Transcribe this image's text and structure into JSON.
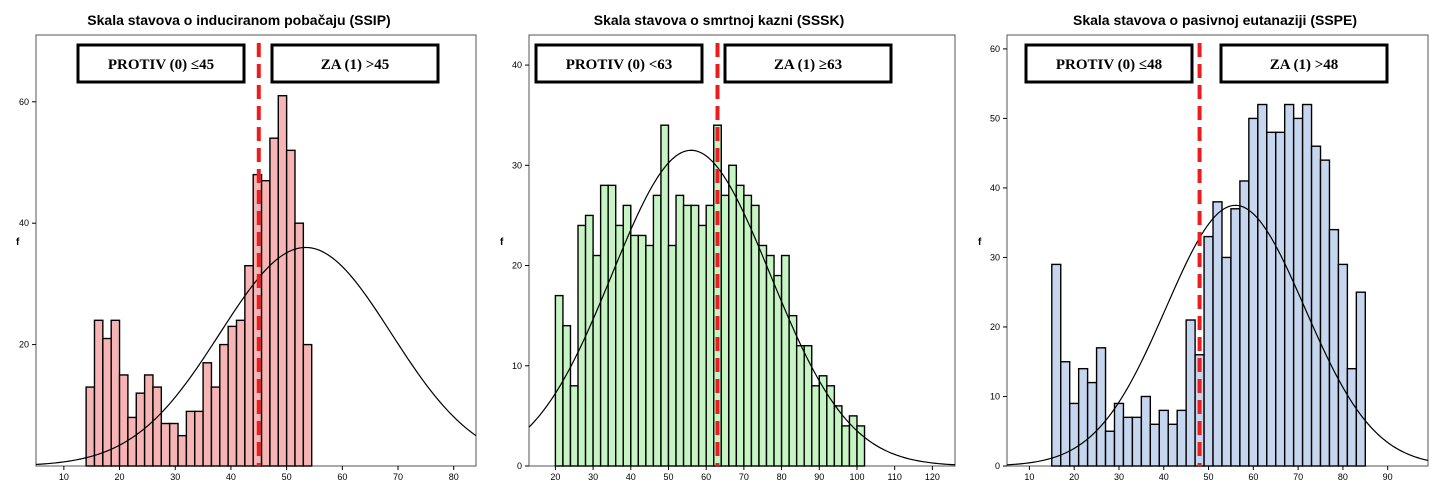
{
  "chart_data": [
    {
      "type": "bar",
      "title": "Skala stavova o induciranom pobačaju (SSIP)",
      "ylabel": "f",
      "xlim": [
        5,
        84
      ],
      "ylim": [
        0,
        71
      ],
      "x_ticks": [
        10,
        20,
        30,
        40,
        50,
        60,
        70,
        80
      ],
      "y_ticks": [
        20,
        40,
        60
      ],
      "bar_color": "#f7b4b4",
      "bin_start": 14,
      "bin_width": 1.5,
      "values": [
        13,
        24,
        21,
        24,
        15,
        8,
        12,
        15,
        13,
        7,
        7,
        5,
        9,
        9,
        17,
        13,
        20,
        23,
        24,
        33,
        48,
        47,
        54,
        61,
        52,
        40,
        20
      ],
      "normal_curve": {
        "mean": 53.4,
        "sd": 15.4,
        "peak": 36
      },
      "cutoff": 45,
      "cutoff_color": "#ee1c1c",
      "label_left": "PROTIV (0) ≤45",
      "label_right": "ZA (1) >45"
    },
    {
      "type": "bar",
      "title": "Skala stavova o smrtnoj kazni (SSSK)",
      "ylabel": "f",
      "xlim": [
        13,
        126
      ],
      "ylim": [
        0,
        43
      ],
      "x_ticks": [
        20,
        30,
        40,
        50,
        60,
        70,
        80,
        90,
        100,
        110,
        120
      ],
      "y_ticks": [
        0,
        10,
        20,
        30,
        40
      ],
      "bar_color": "#c6f4c2",
      "bin_start": 20,
      "bin_width": 2,
      "values": [
        17,
        14,
        8,
        24,
        25,
        21,
        28,
        28,
        24,
        26,
        23,
        23,
        22,
        27,
        34,
        22,
        27,
        26,
        26,
        24,
        26,
        34,
        27,
        30,
        28,
        27,
        26,
        22,
        21,
        19,
        21,
        15,
        12,
        12,
        8,
        9,
        8,
        6,
        4,
        5,
        4
      ],
      "normal_curve": {
        "mean": 56,
        "sd": 21,
        "peak": 31.5
      },
      "cutoff": 63,
      "cutoff_color": "#ee1c1c",
      "label_left": "PROTIV (0) <63",
      "label_right": "ZA (1) ≥63"
    },
    {
      "type": "bar",
      "title": "Skala stavova o pasivnoj eutanaziji (SSPE)",
      "ylabel": "f",
      "xlim": [
        5,
        99
      ],
      "ylim": [
        0,
        62
      ],
      "x_ticks": [
        10,
        20,
        30,
        40,
        50,
        60,
        70,
        80,
        90
      ],
      "y_ticks": [
        0,
        10,
        20,
        30,
        40,
        50,
        60
      ],
      "bar_color": "#c5d6ee",
      "bin_start": 15,
      "bin_width": 2,
      "values": [
        29,
        15,
        9,
        14,
        12,
        17,
        5,
        9,
        7,
        7,
        10,
        6,
        8,
        6,
        8,
        21,
        16,
        33,
        38,
        30,
        37,
        41,
        50,
        52,
        48,
        48,
        52,
        50,
        52,
        46,
        44,
        34,
        29,
        14,
        25
      ],
      "normal_curve": {
        "mean": 56,
        "sd": 15.5,
        "peak": 37.5
      },
      "cutoff": 48,
      "cutoff_color": "#ee1c1c",
      "label_left": "PROTIV (0) ≤48",
      "label_right": "ZA (1) >48"
    }
  ]
}
